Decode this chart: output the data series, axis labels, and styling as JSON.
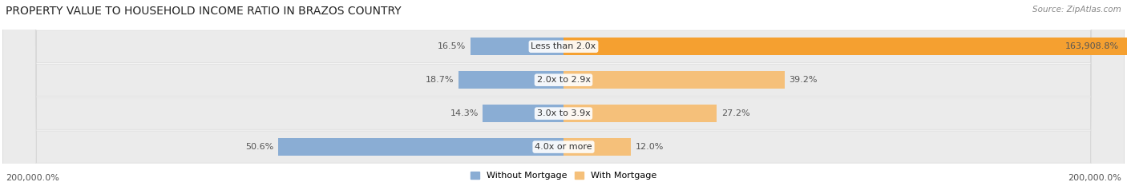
{
  "title": "PROPERTY VALUE TO HOUSEHOLD INCOME RATIO IN BRAZOS COUNTRY",
  "source": "Source: ZipAtlas.com",
  "categories": [
    "Less than 2.0x",
    "2.0x to 2.9x",
    "3.0x to 3.9x",
    "4.0x or more"
  ],
  "without_mortgage": [
    16.5,
    18.7,
    14.3,
    50.6
  ],
  "with_mortgage": [
    163908.8,
    39.2,
    27.2,
    12.0
  ],
  "without_mortgage_labels": [
    "16.5%",
    "18.7%",
    "14.3%",
    "50.6%"
  ],
  "with_mortgage_labels": [
    "163,908.8%",
    "39.2%",
    "27.2%",
    "12.0%"
  ],
  "color_without": "#8aadd4",
  "color_with_normal": "#f5c07a",
  "color_with_large": "#f5a030",
  "bg_row": "#ebebeb",
  "bg_row_edge": "#d8d8d8",
  "bg_chart": "#ffffff",
  "xmin_label": "200,000.0%",
  "xmax_label": "200,000.0%",
  "title_fontsize": 10,
  "label_fontsize": 8,
  "legend_fontsize": 8,
  "source_fontsize": 7.5,
  "scale": 200000.0
}
